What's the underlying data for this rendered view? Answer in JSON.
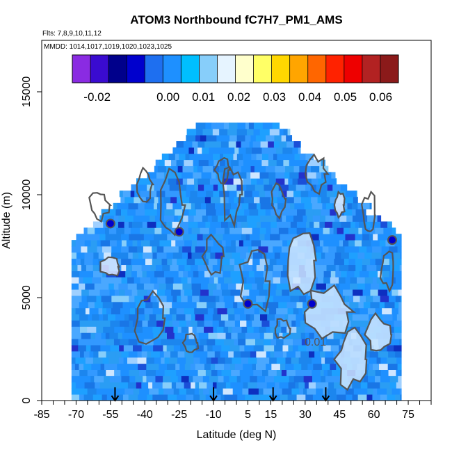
{
  "chart_data": {
    "type": "heatmap",
    "title": "ATOM3 Northbound fC7H7_PM1_AMS",
    "flights_label": "Flts: 7,8,9,10,11,12",
    "mmdd_label": "MMDD: 1014,1017,1019,1020,1023,1025",
    "xlabel": "Latitude (deg N)",
    "ylabel": "Altitude (m)",
    "xlim": [
      -85,
      85
    ],
    "ylim": [
      0,
      17500
    ],
    "x_ticks": [
      -85,
      -70,
      -55,
      -40,
      -25,
      -10,
      5,
      15,
      30,
      45,
      60,
      75
    ],
    "x_tick_labels": [
      "-85",
      "-70",
      "-55",
      "-40",
      "-25",
      "-10",
      "5",
      "15",
      "30",
      "45",
      "60",
      "75"
    ],
    "y_ticks": [
      0,
      5000,
      10000,
      15000
    ],
    "y_tick_labels": [
      "0",
      "5000",
      "10000",
      "15000"
    ],
    "colorbar": {
      "range": [
        -0.027,
        0.065
      ],
      "colors": [
        "#8a2be2",
        "#3a0bd0",
        "#00008b",
        "#0000cd",
        "#1e6ff0",
        "#1e90ff",
        "#00bfff",
        "#87cefa",
        "#e6f4ff",
        "#ffffcc",
        "#ffff66",
        "#ffd700",
        "#ffa500",
        "#ff6600",
        "#ff2200",
        "#ee0000",
        "#b22222",
        "#8b1a1a"
      ],
      "ticks": [
        -0.02,
        0.0,
        0.01,
        0.02,
        0.03,
        0.04,
        0.05,
        0.06
      ],
      "tick_labels": [
        "-0.02",
        "0.00",
        "0.01",
        "0.02",
        "0.03",
        "0.04",
        "0.05",
        "0.06"
      ]
    },
    "contour_label": "0.01",
    "arrow_latitudes": [
      -53,
      -10,
      16,
      39
    ],
    "grid": false,
    "data_extent": {
      "lat_range": [
        -72,
        72
      ],
      "max_altitude_m": 13500
    }
  }
}
